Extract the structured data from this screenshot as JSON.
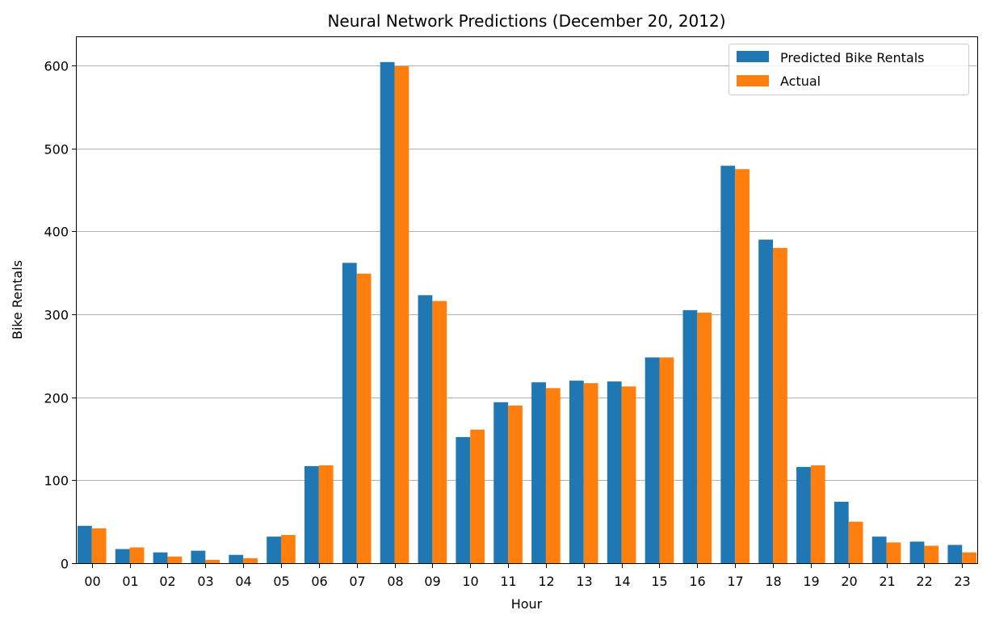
{
  "chart_data": {
    "type": "bar",
    "title": "Neural Network Predictions (December 20, 2012)",
    "xlabel": "Hour",
    "ylabel": "Bike Rentals",
    "ylim": [
      0,
      635
    ],
    "yticks": [
      0,
      100,
      200,
      300,
      400,
      500,
      600
    ],
    "grid": "y-major",
    "legend_position": "top-right",
    "categories": [
      "00",
      "01",
      "02",
      "03",
      "04",
      "05",
      "06",
      "07",
      "08",
      "09",
      "10",
      "11",
      "12",
      "13",
      "14",
      "15",
      "16",
      "17",
      "18",
      "19",
      "20",
      "21",
      "22",
      "23"
    ],
    "series": [
      {
        "name": "Predicted Bike Rentals",
        "color": "#1f77b4",
        "values": [
          45,
          17,
          13,
          15,
          10,
          32,
          117,
          362,
          604,
          323,
          152,
          194,
          218,
          220,
          219,
          248,
          305,
          479,
          390,
          116,
          74,
          32,
          26,
          22
        ]
      },
      {
        "name": "Actual",
        "color": "#ff7f0e",
        "values": [
          42,
          19,
          8,
          4,
          6,
          34,
          118,
          349,
          599,
          316,
          161,
          190,
          211,
          217,
          213,
          248,
          302,
          475,
          380,
          118,
          50,
          25,
          21,
          13
        ]
      }
    ]
  }
}
